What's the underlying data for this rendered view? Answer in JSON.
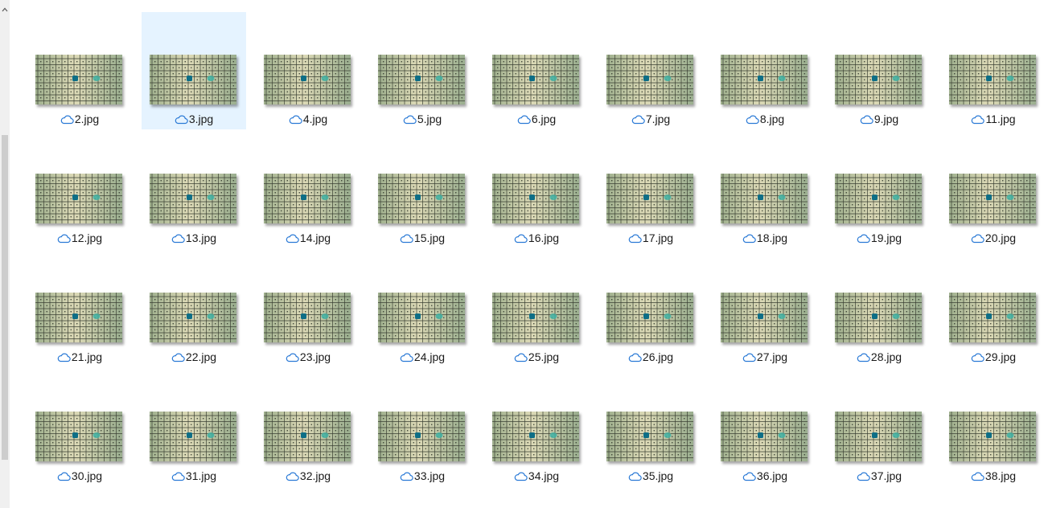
{
  "colors": {
    "cloud": "#2b7ad6",
    "selection": "#e5f3ff",
    "dot_dark": "#0e6e86",
    "dot_light": "#3fb2a3"
  },
  "files": [
    {
      "name": "2.jpg",
      "status_icon": "cloud-icon"
    },
    {
      "name": "3.jpg",
      "status_icon": "cloud-icon",
      "selected": true
    },
    {
      "name": "4.jpg",
      "status_icon": "cloud-icon"
    },
    {
      "name": "5.jpg",
      "status_icon": "cloud-icon"
    },
    {
      "name": "6.jpg",
      "status_icon": "cloud-icon"
    },
    {
      "name": "7.jpg",
      "status_icon": "cloud-icon"
    },
    {
      "name": "8.jpg",
      "status_icon": "cloud-icon"
    },
    {
      "name": "9.jpg",
      "status_icon": "cloud-icon"
    },
    {
      "name": "11.jpg",
      "status_icon": "cloud-icon"
    },
    {
      "name": "12.jpg",
      "status_icon": "cloud-icon"
    },
    {
      "name": "13.jpg",
      "status_icon": "cloud-icon"
    },
    {
      "name": "14.jpg",
      "status_icon": "cloud-icon"
    },
    {
      "name": "15.jpg",
      "status_icon": "cloud-icon"
    },
    {
      "name": "16.jpg",
      "status_icon": "cloud-icon"
    },
    {
      "name": "17.jpg",
      "status_icon": "cloud-icon"
    },
    {
      "name": "18.jpg",
      "status_icon": "cloud-icon"
    },
    {
      "name": "19.jpg",
      "status_icon": "cloud-icon"
    },
    {
      "name": "20.jpg",
      "status_icon": "cloud-icon"
    },
    {
      "name": "21.jpg",
      "status_icon": "cloud-icon"
    },
    {
      "name": "22.jpg",
      "status_icon": "cloud-icon"
    },
    {
      "name": "23.jpg",
      "status_icon": "cloud-icon"
    },
    {
      "name": "24.jpg",
      "status_icon": "cloud-icon"
    },
    {
      "name": "25.jpg",
      "status_icon": "cloud-icon"
    },
    {
      "name": "26.jpg",
      "status_icon": "cloud-icon"
    },
    {
      "name": "27.jpg",
      "status_icon": "cloud-icon"
    },
    {
      "name": "28.jpg",
      "status_icon": "cloud-icon"
    },
    {
      "name": "29.jpg",
      "status_icon": "cloud-icon"
    },
    {
      "name": "30.jpg",
      "status_icon": "cloud-icon"
    },
    {
      "name": "31.jpg",
      "status_icon": "cloud-icon"
    },
    {
      "name": "32.jpg",
      "status_icon": "cloud-icon"
    },
    {
      "name": "33.jpg",
      "status_icon": "cloud-icon"
    },
    {
      "name": "34.jpg",
      "status_icon": "cloud-icon"
    },
    {
      "name": "35.jpg",
      "status_icon": "cloud-icon"
    },
    {
      "name": "36.jpg",
      "status_icon": "cloud-icon"
    },
    {
      "name": "37.jpg",
      "status_icon": "cloud-icon"
    },
    {
      "name": "38.jpg",
      "status_icon": "cloud-icon"
    }
  ]
}
